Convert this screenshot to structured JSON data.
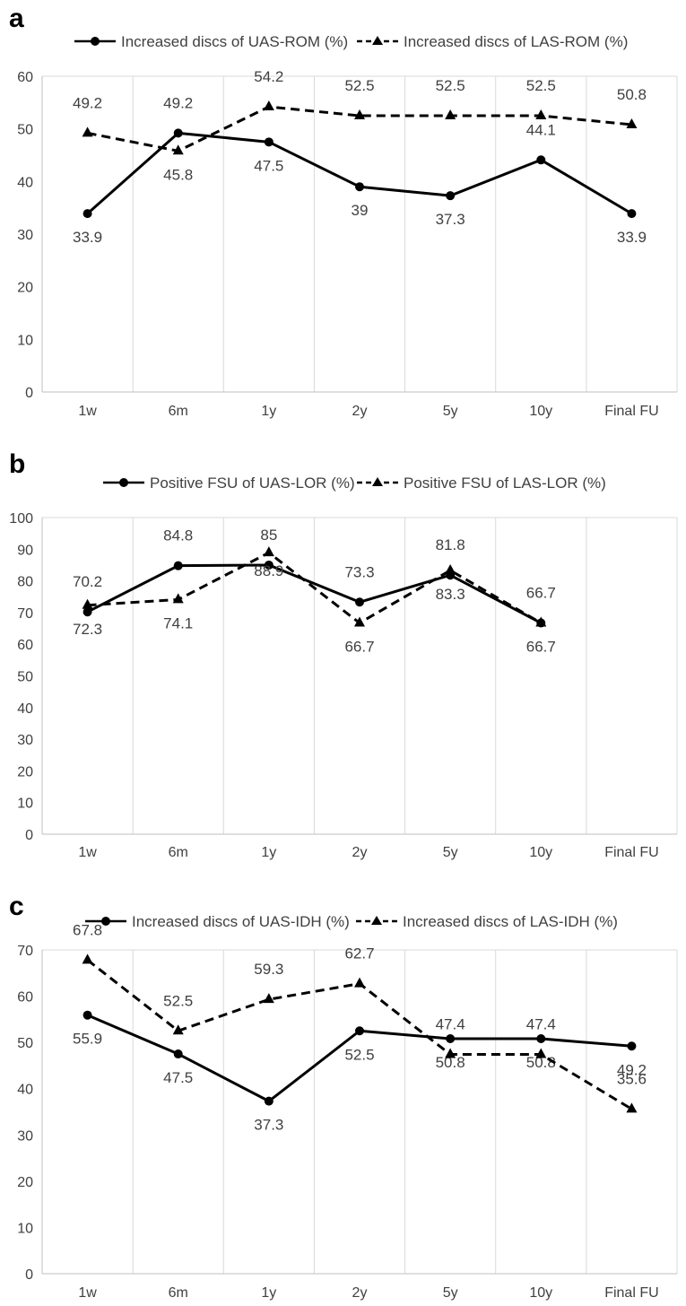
{
  "chart_data": [
    {
      "type": "line",
      "panel": "a",
      "categories": [
        "1w",
        "6m",
        "1y",
        "2y",
        "5y",
        "10y",
        "Final FU"
      ],
      "ylim": [
        0,
        60
      ],
      "yticks": [
        0,
        10,
        20,
        30,
        40,
        50,
        60
      ],
      "grid": "vertical",
      "legend": "top",
      "series": [
        {
          "name": "Increased discs of UAS-ROM (%)",
          "style": "solid-circle",
          "values": [
            33.9,
            49.2,
            47.5,
            39,
            37.3,
            44.1,
            33.9
          ],
          "labels": [
            "33.9",
            "49.2",
            "47.5",
            "39",
            "37.3",
            "44.1",
            "33.9"
          ]
        },
        {
          "name": "Increased discs of LAS-ROM (%)",
          "style": "dashed-triangle",
          "values": [
            49.2,
            45.8,
            54.2,
            52.5,
            52.5,
            52.5,
            50.8
          ],
          "labels": [
            "49.2",
            "45.8",
            "54.2",
            "52.5",
            "52.5",
            "52.5",
            "50.8"
          ]
        }
      ]
    },
    {
      "type": "line",
      "panel": "b",
      "categories": [
        "1w",
        "6m",
        "1y",
        "2y",
        "5y",
        "10y",
        "Final FU"
      ],
      "ylim": [
        0,
        100
      ],
      "yticks": [
        0,
        10,
        20,
        30,
        40,
        50,
        60,
        70,
        80,
        90,
        100
      ],
      "grid": "vertical",
      "legend": "top",
      "series": [
        {
          "name": "Positive FSU of UAS-LOR (%)",
          "style": "solid-circle",
          "values": [
            70.2,
            84.8,
            85,
            73.3,
            81.8,
            66.7,
            null
          ],
          "labels": [
            "70.2",
            "84.8",
            "85",
            "73.3",
            "81.8",
            "66.7",
            null
          ]
        },
        {
          "name": "Positive FSU of LAS-LOR (%)",
          "style": "dashed-triangle",
          "values": [
            72.3,
            74.1,
            88.9,
            66.7,
            83.3,
            66.7,
            null
          ],
          "labels": [
            "72.3",
            "74.1",
            "88.9",
            "66.7",
            "83.3",
            "66.7",
            null
          ]
        }
      ]
    },
    {
      "type": "line",
      "panel": "c",
      "categories": [
        "1w",
        "6m",
        "1y",
        "2y",
        "5y",
        "10y",
        "Final FU"
      ],
      "ylim": [
        0,
        70
      ],
      "yticks": [
        0,
        10,
        20,
        30,
        40,
        50,
        60,
        70
      ],
      "grid": "vertical",
      "legend": "top",
      "series": [
        {
          "name": "Increased discs of UAS-IDH (%)",
          "style": "solid-circle",
          "values": [
            55.9,
            47.5,
            37.3,
            52.5,
            50.8,
            50.8,
            49.2
          ],
          "labels": [
            "55.9",
            "47.5",
            "37.3",
            "52.5",
            "50.8",
            "50.8",
            "49.2"
          ]
        },
        {
          "name": "Increased discs of LAS-IDH (%)",
          "style": "dashed-triangle",
          "values": [
            67.8,
            52.5,
            59.3,
            62.7,
            47.4,
            47.4,
            35.6
          ],
          "labels": [
            "67.8",
            "52.5",
            "59.3",
            "62.7",
            "47.4",
            "47.4",
            "35.6"
          ]
        }
      ]
    }
  ]
}
